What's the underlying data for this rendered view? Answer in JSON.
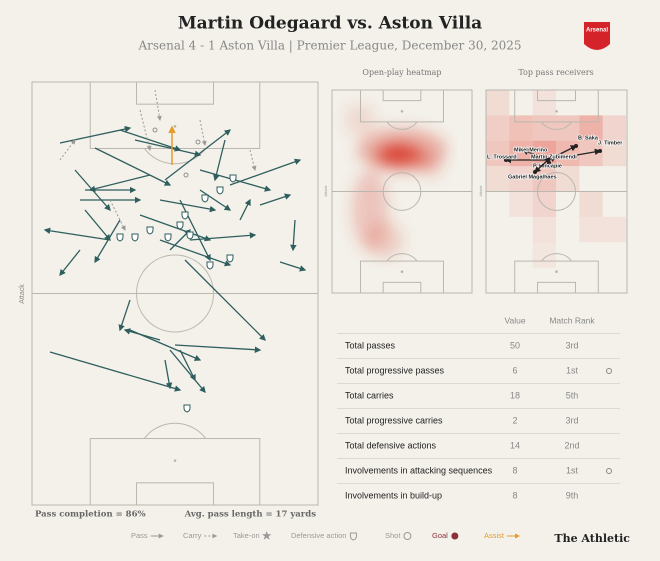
{
  "header": {
    "title": "Martin Odegaard vs. Aston Villa",
    "subtitle": "Arsenal 4 - 1 Aston Villa | Premier League, December 30, 2025",
    "badge": "Arsenal"
  },
  "pitch": {
    "direction_label": "Attack",
    "pass_completion": "Pass completion = 86%",
    "avg_pass_length": "Avg. pass length = 17 yards"
  },
  "heatmap": {
    "title": "Open-play heatmap",
    "direction_label": "Attack"
  },
  "receivers": {
    "title": "Top pass receivers",
    "direction_label": "Attack",
    "players": [
      "B. Saka",
      "J. Timber",
      "Mikel Merino",
      "L. Trossard",
      "Martin Zubimendi",
      "P. Hincapie",
      "Gabriel Magalhaes"
    ]
  },
  "table": {
    "columns": [
      "Value",
      "Match Rank"
    ],
    "rows": [
      [
        "Total passes",
        50,
        "3rd"
      ],
      [
        "Total progressive passes",
        6,
        "1st"
      ],
      [
        "Total carries",
        18,
        "5th"
      ],
      [
        "Total progressive carries",
        2,
        "3rd"
      ],
      [
        "Total defensive actions",
        14,
        "2nd"
      ],
      [
        "Involvements in attacking sequences",
        8,
        "1st"
      ],
      [
        "Involvements in build-up",
        8,
        "9th"
      ]
    ]
  },
  "legend": [
    "Pass",
    "Carry",
    "Take-on",
    "Defensive action",
    "Shot",
    "Goal",
    "Assist"
  ],
  "brand": "The Athletic"
}
